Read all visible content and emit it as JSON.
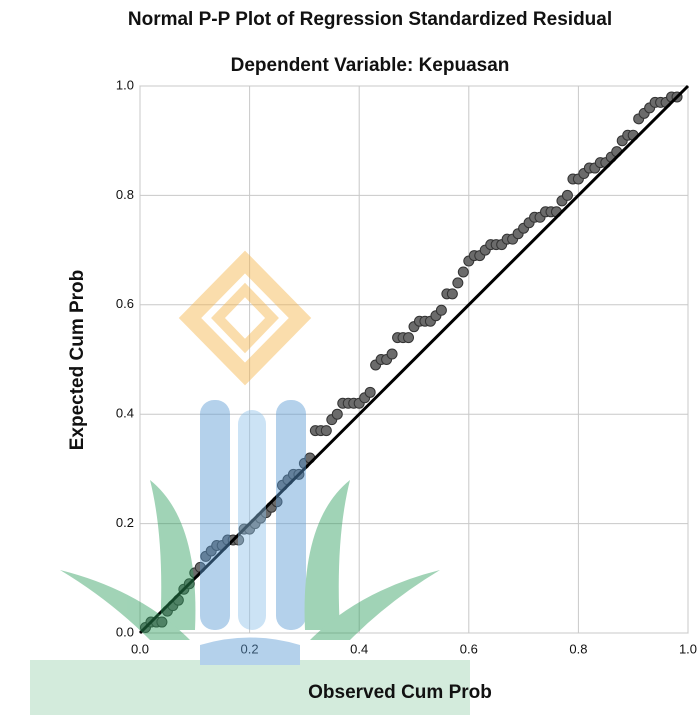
{
  "chart_data": {
    "type": "scatter",
    "title": "Normal P-P Plot of Regression Standardized Residual",
    "subtitle": "Dependent Variable: Kepuasan",
    "x_label": "Observed Cum Prob",
    "y_label": "Expected Cum Prob",
    "xlim": [
      0,
      1
    ],
    "ylim": [
      0,
      1
    ],
    "xticks": [
      {
        "value": 0,
        "label": "0.0"
      },
      0.2,
      0.4,
      0.6,
      0.8,
      {
        "value": 1,
        "label": "1.0"
      }
    ],
    "yticks": [
      {
        "value": 0,
        "label": "0.0"
      },
      0.2,
      0.4,
      0.6,
      0.8,
      {
        "value": 1,
        "label": "1.0"
      }
    ],
    "grid": true,
    "reference_line": true,
    "color": "#6b6b6b",
    "x": [
      0.01,
      0.02,
      0.03,
      0.04,
      0.05,
      0.06,
      0.07,
      0.08,
      0.09,
      0.1,
      0.11,
      0.12,
      0.13,
      0.14,
      0.15,
      0.16,
      0.17,
      0.18,
      0.19,
      0.2,
      0.21,
      0.22,
      0.23,
      0.24,
      0.25,
      0.26,
      0.27,
      0.28,
      0.29,
      0.3,
      0.31,
      0.32,
      0.33,
      0.34,
      0.35,
      0.36,
      0.37,
      0.38,
      0.39,
      0.4,
      0.41,
      0.42,
      0.43,
      0.44,
      0.45,
      0.46,
      0.47,
      0.48,
      0.49,
      0.5,
      0.51,
      0.52,
      0.53,
      0.54,
      0.55,
      0.56,
      0.57,
      0.58,
      0.59,
      0.6,
      0.61,
      0.62,
      0.63,
      0.64,
      0.65,
      0.66,
      0.67,
      0.68,
      0.69,
      0.7,
      0.71,
      0.72,
      0.73,
      0.74,
      0.75,
      0.76,
      0.77,
      0.78,
      0.79,
      0.8,
      0.81,
      0.82,
      0.83,
      0.84,
      0.85,
      0.86,
      0.87,
      0.88,
      0.89,
      0.9,
      0.91,
      0.92,
      0.93,
      0.94,
      0.95,
      0.96,
      0.97,
      0.98
    ],
    "values": [
      0.01,
      0.02,
      0.02,
      0.02,
      0.04,
      0.05,
      0.06,
      0.08,
      0.09,
      0.11,
      0.12,
      0.14,
      0.15,
      0.16,
      0.16,
      0.17,
      0.17,
      0.17,
      0.19,
      0.19,
      0.2,
      0.21,
      0.22,
      0.23,
      0.24,
      0.27,
      0.28,
      0.29,
      0.29,
      0.31,
      0.32,
      0.37,
      0.37,
      0.37,
      0.39,
      0.4,
      0.42,
      0.42,
      0.42,
      0.42,
      0.43,
      0.44,
      0.49,
      0.5,
      0.5,
      0.51,
      0.54,
      0.54,
      0.54,
      0.56,
      0.57,
      0.57,
      0.57,
      0.58,
      0.59,
      0.62,
      0.62,
      0.64,
      0.66,
      0.68,
      0.69,
      0.69,
      0.7,
      0.71,
      0.71,
      0.71,
      0.72,
      0.72,
      0.73,
      0.74,
      0.75,
      0.76,
      0.76,
      0.77,
      0.77,
      0.77,
      0.79,
      0.8,
      0.83,
      0.83,
      0.84,
      0.85,
      0.85,
      0.86,
      0.86,
      0.87,
      0.88,
      0.9,
      0.91,
      0.91,
      0.94,
      0.95,
      0.96,
      0.97,
      0.97,
      0.97,
      0.98,
      0.98
    ]
  }
}
